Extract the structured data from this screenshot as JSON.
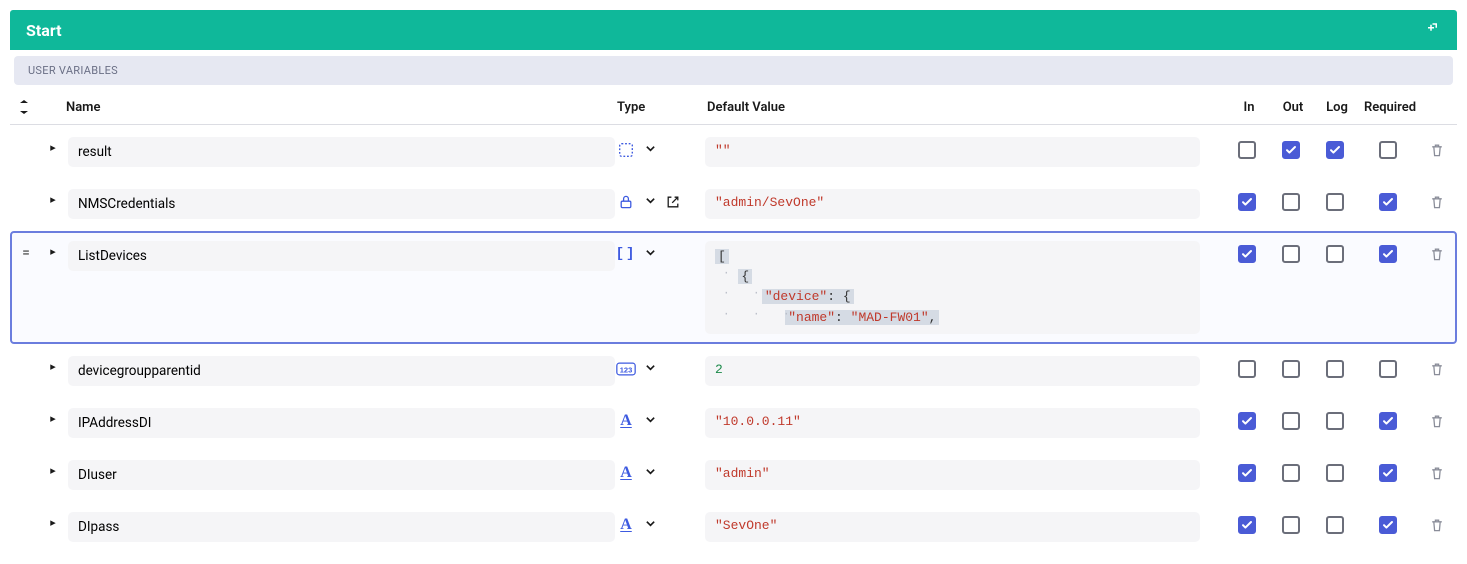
{
  "colors": {
    "header_bg": "#0fb89a",
    "header_text": "#ffffff",
    "section_bg": "#e6e8f2",
    "section_text": "#6a6f85",
    "row_selected_border": "#6b7dde",
    "pill_bg": "#f5f5f7",
    "checkbox_checked": "#4a5bd6",
    "checkbox_border": "#6b6e7a",
    "string_color": "#c0392b",
    "number_color": "#1c8a4a",
    "highlight_bg": "#d5dbe4",
    "trash_color": "#8a8d99",
    "type_icon_blue": "#3d5ae0"
  },
  "header": {
    "title": "Start"
  },
  "section": {
    "title": "USER VARIABLES"
  },
  "columns": {
    "name": "Name",
    "type": "Type",
    "default": "Default Value",
    "in": "In",
    "out": "Out",
    "log": "Log",
    "required": "Required"
  },
  "rows": [
    {
      "name": "result",
      "type_icon": "object",
      "open_ext": false,
      "default_kind": "string",
      "default_display": "\"\"",
      "in": false,
      "out": true,
      "log": true,
      "required": false,
      "selected": false
    },
    {
      "name": "NMSCredentials",
      "type_icon": "lock",
      "open_ext": true,
      "default_kind": "string",
      "default_display": "\"admin/SevOne\"",
      "in": true,
      "out": false,
      "log": false,
      "required": true,
      "selected": false
    },
    {
      "name": "ListDevices",
      "type_icon": "array",
      "open_ext": false,
      "default_kind": "json",
      "json_lines": [
        {
          "indent": 0,
          "text": "[",
          "hl": true
        },
        {
          "indent": 1,
          "text": "{",
          "hl": true
        },
        {
          "indent": 2,
          "keytext": "\"device\"",
          "sep": ": ",
          "valtext": "{",
          "hl": true
        },
        {
          "indent": 3,
          "keytext": "\"name\"",
          "sep": ": ",
          "valtext": "\"MAD-FW01\"",
          "trail": ",",
          "hl": true
        }
      ],
      "in": true,
      "out": false,
      "log": false,
      "required": true,
      "selected": true
    },
    {
      "name": "devicegroupparentid",
      "type_icon": "number",
      "open_ext": false,
      "default_kind": "number",
      "default_display": "2",
      "in": false,
      "out": false,
      "log": false,
      "required": false,
      "selected": false
    },
    {
      "name": "IPAddressDI",
      "type_icon": "text",
      "open_ext": false,
      "default_kind": "string",
      "default_display": "\"10.0.0.11\"",
      "in": true,
      "out": false,
      "log": false,
      "required": true,
      "selected": false
    },
    {
      "name": "DIuser",
      "type_icon": "text",
      "open_ext": false,
      "default_kind": "string",
      "default_display": "\"admin\"",
      "in": true,
      "out": false,
      "log": false,
      "required": true,
      "selected": false
    },
    {
      "name": "DIpass",
      "type_icon": "text",
      "open_ext": false,
      "default_kind": "string",
      "default_display": "\"SevOne\"",
      "in": true,
      "out": false,
      "log": false,
      "required": true,
      "selected": false
    }
  ]
}
